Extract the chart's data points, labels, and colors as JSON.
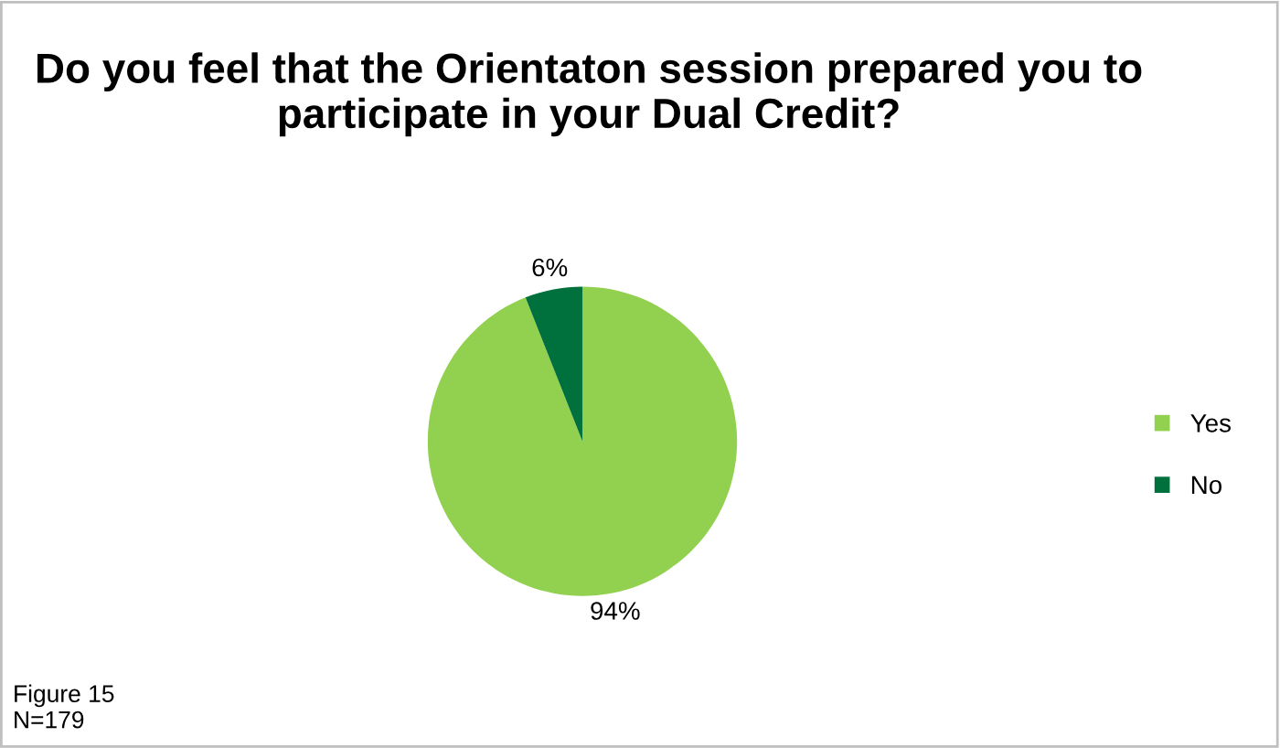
{
  "chart_data": {
    "type": "pie",
    "title": "Do you feel that the Orientaton session prepared you to participate in your Dual Credit?",
    "categories": [
      "Yes",
      "No"
    ],
    "values": [
      94,
      6
    ],
    "colors": [
      "#92d050",
      "#00703c"
    ],
    "value_labels": [
      "94%",
      "6%"
    ],
    "legend": "right",
    "annotations": [
      "Figure 15\nN=179"
    ]
  }
}
